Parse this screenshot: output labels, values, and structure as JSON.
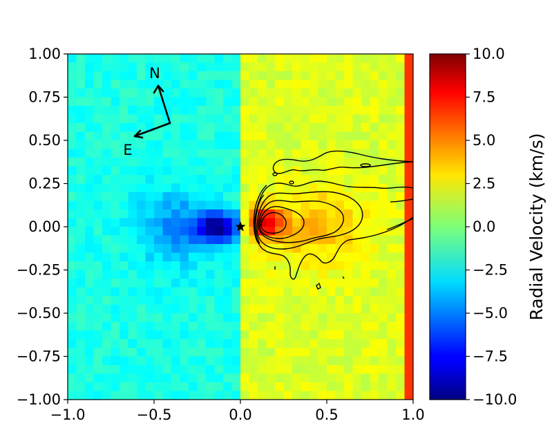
{
  "chart_data": {
    "type": "heatmap",
    "title": "",
    "xlabel": "",
    "ylabel": "",
    "xlim": [
      -1.0,
      1.0
    ],
    "ylim": [
      -1.0,
      1.0
    ],
    "x_tick_labels": [
      "−1.0",
      "−0.5",
      "0.0",
      "0.5",
      "1.0"
    ],
    "x_ticks": [
      -1.0,
      -0.5,
      0.0,
      0.5,
      1.0
    ],
    "y_tick_labels": [
      "1.00",
      "0.75",
      "0.50",
      "0.25",
      "0.00",
      "−0.25",
      "−0.50",
      "−0.75",
      "−1.00"
    ],
    "y_ticks": [
      1.0,
      0.75,
      0.5,
      0.25,
      0.0,
      -0.25,
      -0.5,
      -0.75,
      -1.0
    ],
    "colormap": "jet",
    "grid": false,
    "colorbar": {
      "label": "Radial Velocity (km/s)",
      "range": [
        -10.0,
        10.0
      ],
      "tick_labels": [
        "10.0",
        "7.5",
        "5.0",
        "2.5",
        "0.0",
        "−2.5",
        "−5.0",
        "−7.5",
        "−10.0"
      ],
      "ticks": [
        10.0,
        7.5,
        5.0,
        2.5,
        0.0,
        -2.5,
        -5.0,
        -7.5,
        -10.0
      ]
    },
    "star_marker": {
      "x": 0.0,
      "y": 0.0
    },
    "compass": {
      "north_label": "N",
      "east_label": "E"
    },
    "grid_resolution": 40,
    "features": {
      "background_left": -2.0,
      "background_right": 1.8,
      "right_edge_band": {
        "x_from": 0.95,
        "value": 6.5
      },
      "blueshifted_lobe": {
        "center": [
          -0.13,
          0.0
        ],
        "peak": -9.0
      },
      "redshifted_lobe": {
        "center": [
          0.14,
          0.02
        ],
        "peak": 8.0
      }
    }
  },
  "colors": {
    "axis": "#000000",
    "contour": "#000000",
    "background": "#ffffff"
  }
}
